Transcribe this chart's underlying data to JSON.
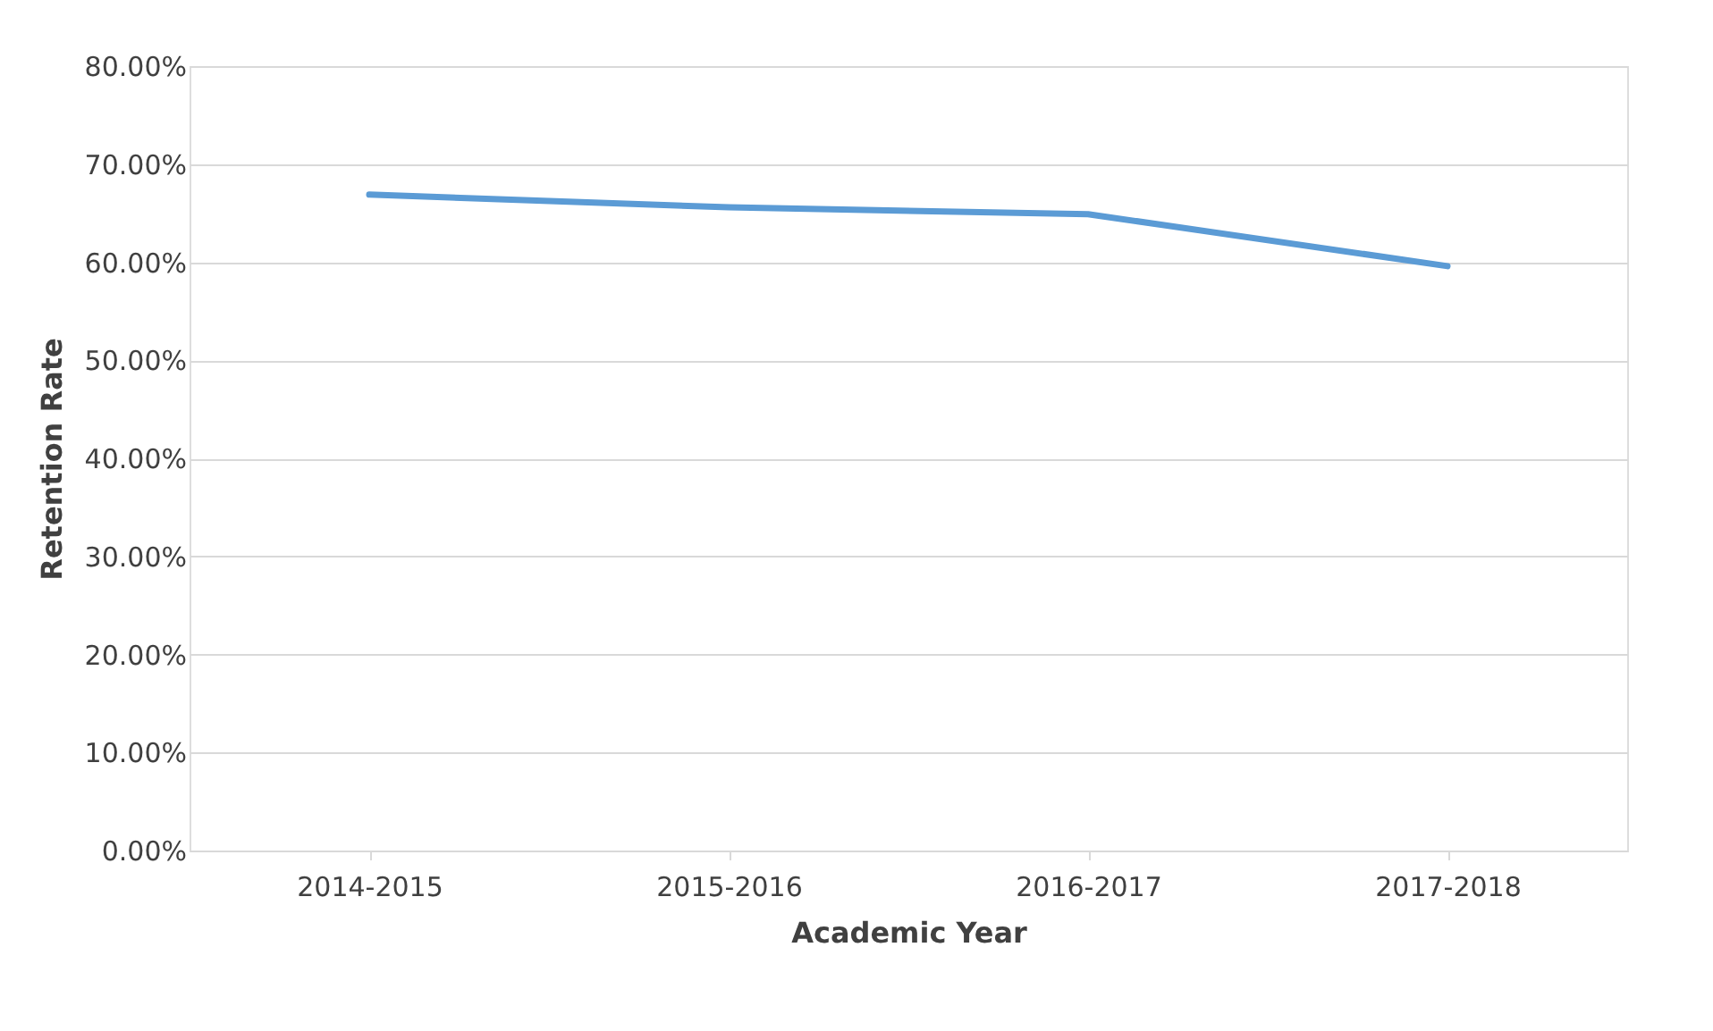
{
  "chart_data": {
    "type": "line",
    "xlabel": "Academic Year",
    "ylabel": "Retention Rate",
    "categories": [
      "2014-2015",
      "2015-2016",
      "2016-2017",
      "2017-2018"
    ],
    "series": [
      {
        "color": "#5b9bd5",
        "values": [
          66.9,
          65.6,
          64.9,
          59.6
        ]
      }
    ],
    "ylim": [
      0,
      80
    ],
    "yticks": [
      {
        "value": 0,
        "label": "0.00%"
      },
      {
        "value": 10,
        "label": "10.00%"
      },
      {
        "value": 20,
        "label": "20.00%"
      },
      {
        "value": 30,
        "label": "30.00%"
      },
      {
        "value": 40,
        "label": "40.00%"
      },
      {
        "value": 50,
        "label": "50.00%"
      },
      {
        "value": 60,
        "label": "60.00%"
      },
      {
        "value": 70,
        "label": "70.00%"
      },
      {
        "value": 80,
        "label": "80.00%"
      }
    ],
    "grid": "y",
    "marker": "none",
    "line_style": "solid"
  }
}
